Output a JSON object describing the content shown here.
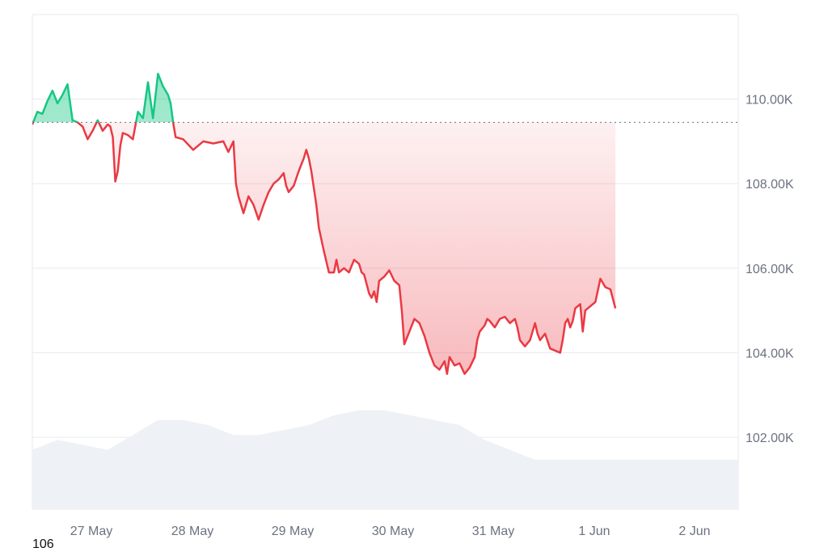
{
  "chart_data": {
    "type": "area",
    "y_tick_labels": [
      "102.00K",
      "104.00K",
      "106.00K",
      "108.00K",
      "110.00K"
    ],
    "y_ticks": [
      102000,
      104000,
      106000,
      108000,
      110000
    ],
    "x_tick_labels": [
      "27 May",
      "28 May",
      "29 May",
      "30 May",
      "31 May",
      "1 Jun",
      "2 Jun"
    ],
    "ylim": [
      100300,
      112000
    ],
    "baseline": 109450,
    "grid": true,
    "colors": {
      "above": "#16c784",
      "below": "#ea3943",
      "volume": "#eef1f5",
      "grid": "#e8eaee"
    },
    "series": [
      {
        "values": [
          [
            0.0,
            109400
          ],
          [
            0.1,
            109700
          ],
          [
            0.2,
            109650
          ],
          [
            0.3,
            109950
          ],
          [
            0.4,
            110200
          ],
          [
            0.5,
            109900
          ],
          [
            0.6,
            110100
          ],
          [
            0.7,
            110350
          ],
          [
            0.8,
            109500
          ],
          [
            0.9,
            109450
          ],
          [
            1.0,
            109350
          ],
          [
            1.1,
            109050
          ],
          [
            1.2,
            109250
          ],
          [
            1.3,
            109500
          ],
          [
            1.4,
            109250
          ],
          [
            1.5,
            109400
          ],
          [
            1.55,
            109350
          ],
          [
            1.6,
            109100
          ],
          [
            1.65,
            108050
          ],
          [
            1.7,
            108300
          ],
          [
            1.75,
            108900
          ],
          [
            1.8,
            109200
          ],
          [
            1.9,
            109150
          ],
          [
            2.0,
            109050
          ],
          [
            2.1,
            109700
          ],
          [
            2.2,
            109550
          ],
          [
            2.3,
            110400
          ],
          [
            2.4,
            109550
          ],
          [
            2.5,
            110600
          ],
          [
            2.6,
            110300
          ],
          [
            2.7,
            110100
          ],
          [
            2.75,
            109900
          ],
          [
            2.8,
            109450
          ],
          [
            2.85,
            109100
          ],
          [
            3.0,
            109050
          ],
          [
            3.2,
            108800
          ],
          [
            3.4,
            109000
          ],
          [
            3.6,
            108950
          ],
          [
            3.8,
            109000
          ],
          [
            3.9,
            108750
          ],
          [
            4.0,
            109000
          ],
          [
            4.05,
            108000
          ],
          [
            4.1,
            107700
          ],
          [
            4.2,
            107300
          ],
          [
            4.3,
            107700
          ],
          [
            4.4,
            107500
          ],
          [
            4.5,
            107150
          ],
          [
            4.6,
            107500
          ],
          [
            4.7,
            107800
          ],
          [
            4.8,
            108000
          ],
          [
            4.9,
            108100
          ],
          [
            5.0,
            108250
          ],
          [
            5.05,
            107950
          ],
          [
            5.1,
            107800
          ],
          [
            5.2,
            107950
          ],
          [
            5.3,
            108300
          ],
          [
            5.4,
            108600
          ],
          [
            5.45,
            108800
          ],
          [
            5.5,
            108600
          ],
          [
            5.55,
            108300
          ],
          [
            5.6,
            107900
          ],
          [
            5.65,
            107500
          ],
          [
            5.7,
            106950
          ],
          [
            5.8,
            106400
          ],
          [
            5.9,
            105900
          ],
          [
            6.0,
            105900
          ],
          [
            6.05,
            106200
          ],
          [
            6.1,
            105900
          ],
          [
            6.2,
            106000
          ],
          [
            6.3,
            105900
          ],
          [
            6.4,
            106200
          ],
          [
            6.5,
            106100
          ],
          [
            6.55,
            105900
          ],
          [
            6.6,
            105850
          ],
          [
            6.7,
            105400
          ],
          [
            6.75,
            105300
          ],
          [
            6.8,
            105450
          ],
          [
            6.85,
            105200
          ],
          [
            6.9,
            105700
          ],
          [
            7.0,
            105800
          ],
          [
            7.1,
            105950
          ],
          [
            7.2,
            105700
          ],
          [
            7.3,
            105600
          ],
          [
            7.35,
            105000
          ],
          [
            7.4,
            104200
          ],
          [
            7.5,
            104500
          ],
          [
            7.6,
            104800
          ],
          [
            7.7,
            104700
          ],
          [
            7.8,
            104400
          ],
          [
            7.9,
            104000
          ],
          [
            8.0,
            103700
          ],
          [
            8.1,
            103600
          ],
          [
            8.2,
            103800
          ],
          [
            8.25,
            103500
          ],
          [
            8.3,
            103900
          ],
          [
            8.4,
            103700
          ],
          [
            8.5,
            103750
          ],
          [
            8.6,
            103500
          ],
          [
            8.7,
            103650
          ],
          [
            8.8,
            103900
          ],
          [
            8.85,
            104300
          ],
          [
            8.9,
            104500
          ],
          [
            9.0,
            104650
          ],
          [
            9.05,
            104800
          ],
          [
            9.1,
            104750
          ],
          [
            9.2,
            104600
          ],
          [
            9.3,
            104800
          ],
          [
            9.4,
            104850
          ],
          [
            9.5,
            104700
          ],
          [
            9.6,
            104800
          ],
          [
            9.65,
            104600
          ],
          [
            9.7,
            104300
          ],
          [
            9.8,
            104150
          ],
          [
            9.9,
            104300
          ],
          [
            10.0,
            104700
          ],
          [
            10.05,
            104450
          ],
          [
            10.1,
            104300
          ],
          [
            10.2,
            104450
          ],
          [
            10.3,
            104100
          ],
          [
            10.4,
            104050
          ],
          [
            10.5,
            104000
          ],
          [
            10.55,
            104300
          ],
          [
            10.6,
            104700
          ],
          [
            10.65,
            104800
          ],
          [
            10.7,
            104600
          ],
          [
            10.75,
            104750
          ],
          [
            10.8,
            105050
          ],
          [
            10.9,
            105150
          ],
          [
            10.95,
            104500
          ],
          [
            11.0,
            105000
          ],
          [
            11.1,
            105100
          ],
          [
            11.2,
            105200
          ],
          [
            11.3,
            105750
          ],
          [
            11.4,
            105550
          ],
          [
            11.5,
            105500
          ],
          [
            11.6,
            105050
          ]
        ]
      }
    ],
    "volume": [
      [
        0.0,
        0.12
      ],
      [
        0.5,
        0.14
      ],
      [
        1.0,
        0.13
      ],
      [
        1.5,
        0.12
      ],
      [
        2.0,
        0.15
      ],
      [
        2.5,
        0.18
      ],
      [
        3.0,
        0.18
      ],
      [
        3.5,
        0.17
      ],
      [
        4.0,
        0.15
      ],
      [
        4.5,
        0.15
      ],
      [
        5.0,
        0.16
      ],
      [
        5.5,
        0.17
      ],
      [
        6.0,
        0.19
      ],
      [
        6.5,
        0.2
      ],
      [
        7.0,
        0.2
      ],
      [
        7.5,
        0.19
      ],
      [
        8.0,
        0.18
      ],
      [
        8.5,
        0.17
      ],
      [
        9.0,
        0.14
      ],
      [
        9.5,
        0.12
      ],
      [
        10.0,
        0.1
      ],
      [
        10.5,
        0.1
      ],
      [
        11.0,
        0.1
      ],
      [
        11.6,
        0.1
      ]
    ]
  },
  "footer": {
    "corner_label": "106"
  }
}
